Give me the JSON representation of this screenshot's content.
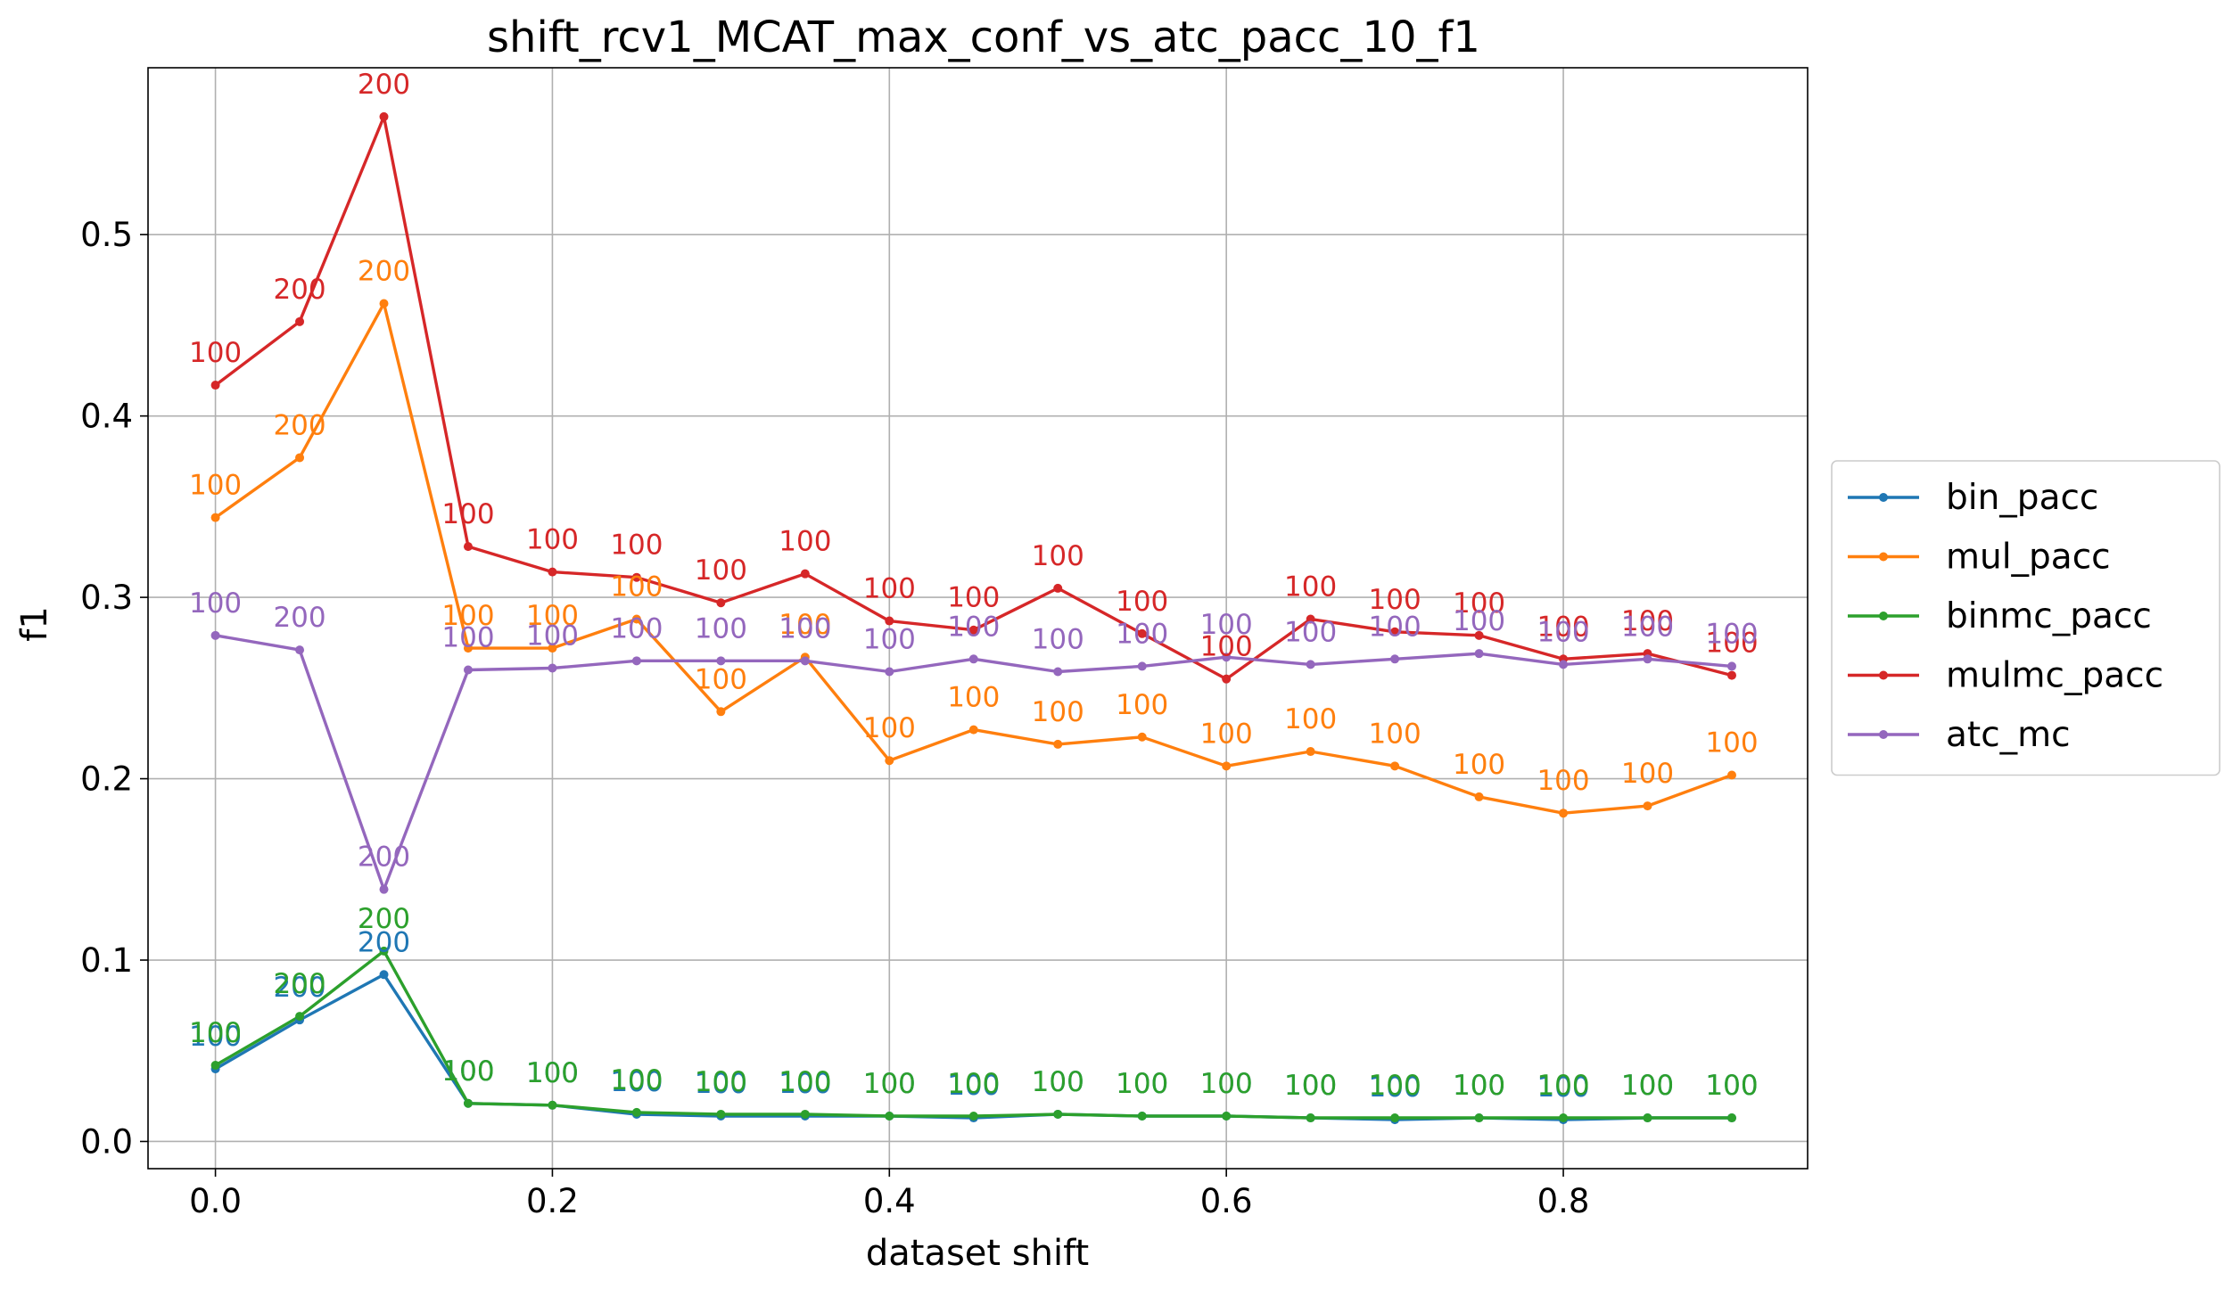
{
  "chart_data": {
    "type": "line",
    "title": "shift_rcv1_MCAT_max_conf_vs_atc_pacc_10_f1",
    "xlabel": "dataset shift",
    "ylabel": "f1",
    "xlim": [
      -0.04,
      0.945
    ],
    "ylim": [
      -0.015,
      0.592
    ],
    "xticks": [
      0.0,
      0.2,
      0.4,
      0.6,
      0.8
    ],
    "xtick_labels": [
      "0.0",
      "0.2",
      "0.4",
      "0.6",
      "0.8"
    ],
    "yticks": [
      0.0,
      0.1,
      0.2,
      0.3,
      0.4,
      0.5
    ],
    "ytick_labels": [
      "0.0",
      "0.1",
      "0.2",
      "0.3",
      "0.4",
      "0.5"
    ],
    "grid": true,
    "legend_position": "center-right-outside",
    "x": [
      0.0,
      0.05,
      0.1,
      0.15,
      0.2,
      0.25,
      0.3,
      0.35,
      0.4,
      0.45,
      0.5,
      0.55,
      0.6,
      0.65,
      0.7,
      0.75,
      0.8,
      0.85,
      0.9
    ],
    "point_labels": [
      "100",
      "200",
      "200",
      "100",
      "100",
      "100",
      "100",
      "100",
      "100",
      "100",
      "100",
      "100",
      "100",
      "100",
      "100",
      "100",
      "100",
      "100",
      "100"
    ],
    "series": [
      {
        "name": "bin_pacc",
        "color": "#1f77b4",
        "values": [
          0.04,
          0.067,
          0.092,
          0.021,
          0.02,
          0.015,
          0.014,
          0.014,
          0.014,
          0.013,
          0.015,
          0.014,
          0.014,
          0.013,
          0.012,
          0.013,
          0.012,
          0.013,
          0.013
        ]
      },
      {
        "name": "mul_pacc",
        "color": "#ff7f0e",
        "values": [
          0.344,
          0.377,
          0.462,
          0.272,
          0.272,
          0.288,
          0.237,
          0.267,
          0.21,
          0.227,
          0.219,
          0.223,
          0.207,
          0.215,
          0.207,
          0.19,
          0.181,
          0.185,
          0.202
        ]
      },
      {
        "name": "binmc_pacc",
        "color": "#2ca02c",
        "values": [
          0.042,
          0.069,
          0.105,
          0.021,
          0.02,
          0.016,
          0.015,
          0.015,
          0.014,
          0.014,
          0.015,
          0.014,
          0.014,
          0.013,
          0.013,
          0.013,
          0.013,
          0.013,
          0.013
        ]
      },
      {
        "name": "mulmc_pacc",
        "color": "#d62728",
        "values": [
          0.417,
          0.452,
          0.565,
          0.328,
          0.314,
          0.311,
          0.297,
          0.313,
          0.287,
          0.282,
          0.305,
          0.28,
          0.255,
          0.288,
          0.281,
          0.279,
          0.266,
          0.269,
          0.257
        ]
      },
      {
        "name": "atc_mc",
        "color": "#9467bd",
        "values": [
          0.279,
          0.271,
          0.139,
          0.26,
          0.261,
          0.265,
          0.265,
          0.265,
          0.259,
          0.266,
          0.259,
          0.262,
          0.267,
          0.263,
          0.266,
          0.269,
          0.263,
          0.266,
          0.262
        ]
      }
    ]
  }
}
